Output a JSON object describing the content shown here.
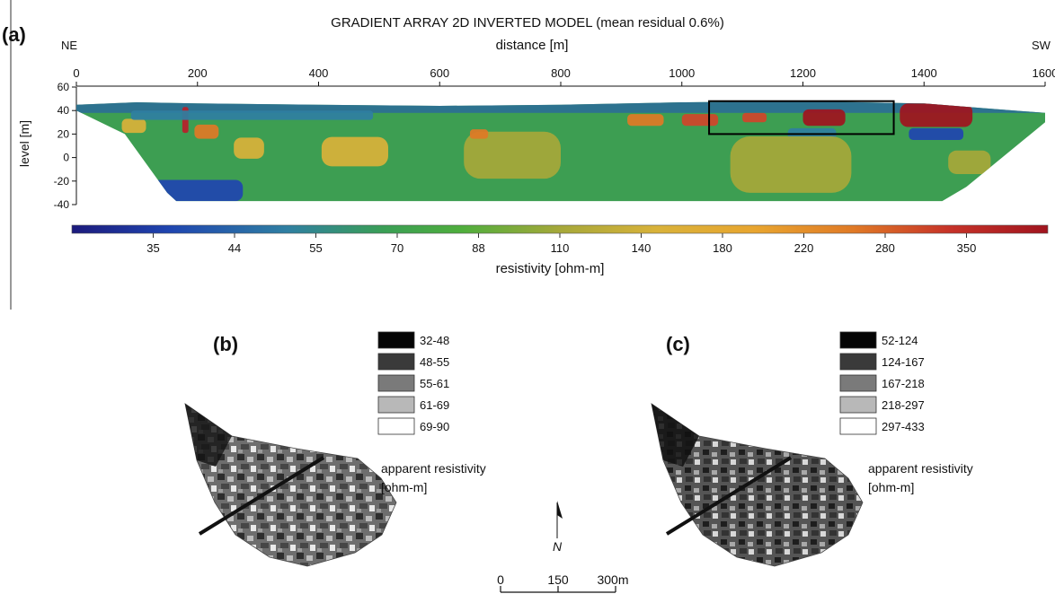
{
  "panel_a": {
    "label": "(a)",
    "title": "GRADIENT ARRAY 2D INVERTED MODEL (mean residual 0.6%)",
    "left_direction": "NE",
    "right_direction": "SW",
    "colorbar": {
      "labels": [
        "35",
        "44",
        "55",
        "70",
        "88",
        "110",
        "140",
        "180",
        "220",
        "280",
        "350"
      ],
      "label": "resistivity [ohm-m]",
      "colors": [
        "#1c1a7c",
        "#1f45b0",
        "#2f7fa2",
        "#3a9f55",
        "#4fae3c",
        "#a6a83a",
        "#d9b23a",
        "#e8a52f",
        "#e07a26",
        "#d0452a",
        "#b8202a",
        "#a0141e"
      ]
    }
  },
  "panel_b": {
    "label": "(b)",
    "legend": [
      "32-48",
      "48-55",
      "55-61",
      "61-69",
      "69-90"
    ],
    "legend_colors": [
      "#050505",
      "#3a3a3a",
      "#7a7a7a",
      "#b8b8b8",
      "#ffffff"
    ],
    "legend_title_1": "apparent resistivity",
    "legend_title_2": "[ohm-m]"
  },
  "panel_c": {
    "label": "(c)",
    "legend": [
      "52-124",
      "124-167",
      "167-218",
      "218-297",
      "297-433"
    ],
    "legend_colors": [
      "#050505",
      "#3a3a3a",
      "#7a7a7a",
      "#b8b8b8",
      "#ffffff"
    ],
    "legend_title_1": "apparent resistivity",
    "legend_title_2": "[ohm-m]"
  },
  "north_arrow": {
    "label": "N"
  },
  "scale_bar": {
    "labels": [
      "0",
      "150",
      "300m"
    ]
  },
  "chart_data": {
    "type": "heatmap",
    "title": "GRADIENT ARRAY 2D INVERTED MODEL (mean residual 0.6%)",
    "xlabel": "distance [m]",
    "ylabel": "level [m]",
    "x_ticks": [
      0,
      200,
      400,
      600,
      800,
      1000,
      1200,
      1400,
      1600
    ],
    "y_ticks": [
      60,
      40,
      20,
      0,
      -20,
      -40
    ],
    "xlim": [
      0,
      1600
    ],
    "ylim": [
      -40,
      60
    ],
    "highlight_box": {
      "x": [
        1045,
        1350
      ],
      "y": [
        20,
        48
      ]
    },
    "surface_profile": [
      [
        0,
        45
      ],
      [
        100,
        47
      ],
      [
        200,
        46
      ],
      [
        400,
        45
      ],
      [
        600,
        44
      ],
      [
        800,
        45
      ],
      [
        1000,
        47
      ],
      [
        1200,
        48
      ],
      [
        1400,
        46
      ],
      [
        1500,
        42
      ],
      [
        1600,
        38
      ]
    ],
    "bottom_profile": [
      [
        0,
        40
      ],
      [
        80,
        20
      ],
      [
        150,
        -30
      ],
      [
        165,
        -37
      ],
      [
        1430,
        -37
      ],
      [
        1470,
        -25
      ],
      [
        1600,
        30
      ]
    ],
    "anomalies": [
      {
        "x": 95,
        "y": 27,
        "w": 40,
        "h": 12,
        "value": 110
      },
      {
        "x": 180,
        "y": 32,
        "w": 10,
        "h": 22,
        "value": 280
      },
      {
        "x": 215,
        "y": 22,
        "w": 40,
        "h": 12,
        "value": 180
      },
      {
        "x": 285,
        "y": 8,
        "w": 50,
        "h": 18,
        "value": 110
      },
      {
        "x": 460,
        "y": 5,
        "w": 110,
        "h": 25,
        "value": 110
      },
      {
        "x": 720,
        "y": 2,
        "w": 160,
        "h": 40,
        "value": 88
      },
      {
        "x": 665,
        "y": 20,
        "w": 30,
        "h": 8,
        "value": 180
      },
      {
        "x": 940,
        "y": 32,
        "w": 60,
        "h": 10,
        "value": 180
      },
      {
        "x": 1030,
        "y": 32,
        "w": 60,
        "h": 10,
        "value": 220
      },
      {
        "x": 1120,
        "y": 34,
        "w": 40,
        "h": 8,
        "value": 220
      },
      {
        "x": 1235,
        "y": 34,
        "w": 70,
        "h": 14,
        "value": 350
      },
      {
        "x": 1420,
        "y": 36,
        "w": 120,
        "h": 20,
        "value": 350
      },
      {
        "x": 1420,
        "y": 20,
        "w": 90,
        "h": 10,
        "value": 35
      },
      {
        "x": 1215,
        "y": 20,
        "w": 80,
        "h": 10,
        "value": 44
      },
      {
        "x": 1180,
        "y": -6,
        "w": 200,
        "h": 48,
        "value": 88
      },
      {
        "x": 1475,
        "y": -4,
        "w": 70,
        "h": 20,
        "value": 88
      },
      {
        "x": 200,
        "y": -28,
        "w": 150,
        "h": 18,
        "value": 35
      },
      {
        "x": 290,
        "y": 36,
        "w": 400,
        "h": 8,
        "value": 44
      }
    ]
  }
}
